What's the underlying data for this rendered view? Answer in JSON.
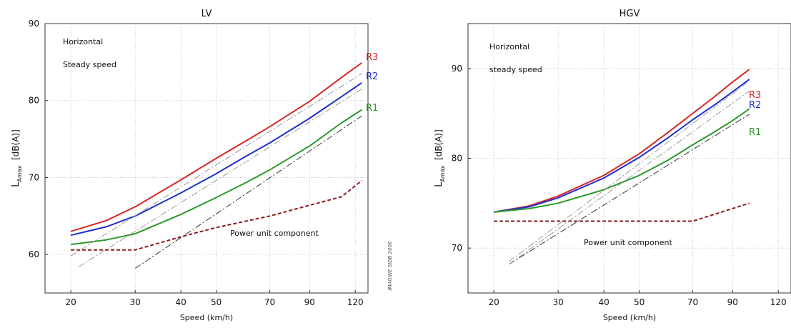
{
  "chart_data": [
    {
      "type": "line",
      "title": "LV",
      "xlabel": "Speed (km/h)",
      "ylabel_main": "L",
      "ylabel_sub": "Amax",
      "ylabel_unit": "[dB(A)]",
      "x_scale": "log",
      "xlim": [
        17,
        130
      ],
      "ylim": [
        55,
        90
      ],
      "xticks": [
        20,
        30,
        40,
        50,
        70,
        90,
        120
      ],
      "yticks": [
        60,
        70,
        80,
        90
      ],
      "grid": true,
      "annotations": [
        "Horizontal",
        "Steady speed"
      ],
      "component_label": "Power unit component",
      "watermark": "IMAGINE SIDB 2006",
      "series": [
        {
          "name": "R3",
          "color": "#d62728",
          "style": "solid",
          "x": [
            20,
            25,
            30,
            40,
            50,
            60,
            70,
            90,
            110,
            125
          ],
          "y": [
            63.0,
            64.4,
            66.2,
            69.7,
            72.5,
            74.7,
            76.6,
            79.9,
            83.0,
            84.9
          ]
        },
        {
          "name": "R2",
          "color": "#1f2fd0",
          "style": "solid",
          "x": [
            20,
            25,
            30,
            40,
            50,
            60,
            70,
            90,
            110,
            125
          ],
          "y": [
            62.5,
            63.6,
            65.0,
            68.0,
            70.5,
            72.7,
            74.5,
            77.7,
            80.5,
            82.3
          ]
        },
        {
          "name": "R1",
          "color": "#2a9a2a",
          "style": "solid",
          "x": [
            20,
            25,
            30,
            40,
            50,
            60,
            70,
            90,
            110,
            125
          ],
          "y": [
            61.3,
            61.9,
            62.7,
            65.2,
            67.4,
            69.3,
            71.0,
            74.1,
            77.1,
            78.8
          ]
        },
        {
          "name": "",
          "color": "#8b1a1a",
          "style": "dashed",
          "x": [
            20,
            30,
            40,
            50,
            70,
            90,
            110,
            125
          ],
          "y": [
            60.6,
            60.6,
            62.3,
            63.5,
            65.0,
            66.4,
            67.5,
            69.6
          ]
        },
        {
          "name": "",
          "color": "#333333",
          "style": "dashdot",
          "x": [
            30,
            125
          ],
          "y": [
            58.2,
            78.0
          ]
        },
        {
          "name": "",
          "color": "#999999",
          "style": "dashdot",
          "x": [
            21,
            125
          ],
          "y": [
            58.4,
            81.5
          ]
        },
        {
          "name": "",
          "color": "#999999",
          "style": "dashdot",
          "x": [
            20,
            125
          ],
          "y": [
            59.8,
            83.5
          ]
        }
      ]
    },
    {
      "type": "line",
      "title": "HGV",
      "xlabel": "Speed (km/h)",
      "ylabel_main": "L",
      "ylabel_sub": "Amax",
      "ylabel_unit": "[dB(A)]",
      "x_scale": "log",
      "xlim": [
        17,
        130
      ],
      "ylim": [
        65,
        95
      ],
      "xticks": [
        20,
        30,
        40,
        50,
        70,
        90,
        120
      ],
      "yticks": [
        70,
        80,
        90
      ],
      "grid": true,
      "annotations": [
        "Horizontal",
        "steady speed"
      ],
      "component_label": "Power unit component",
      "series": [
        {
          "name": "R3",
          "color": "#d62728",
          "style": "solid",
          "x": [
            20,
            25,
            30,
            40,
            50,
            60,
            70,
            80,
            90,
            100
          ],
          "y": [
            74.0,
            74.7,
            75.8,
            78.1,
            80.5,
            82.9,
            85.0,
            86.8,
            88.5,
            89.9
          ]
        },
        {
          "name": "R2",
          "color": "#1f2fd0",
          "style": "solid",
          "x": [
            20,
            25,
            30,
            40,
            50,
            60,
            70,
            80,
            90,
            100
          ],
          "y": [
            74.0,
            74.6,
            75.6,
            77.8,
            80.1,
            82.3,
            84.3,
            85.9,
            87.4,
            88.8
          ]
        },
        {
          "name": "R1",
          "color": "#2a9a2a",
          "style": "solid",
          "x": [
            20,
            25,
            30,
            40,
            50,
            60,
            70,
            80,
            90,
            100
          ],
          "y": [
            74.0,
            74.4,
            75.0,
            76.5,
            78.1,
            79.8,
            81.5,
            82.9,
            84.2,
            85.5
          ]
        },
        {
          "name": "",
          "color": "#8b1a1a",
          "style": "dashed",
          "x": [
            20,
            70,
            100
          ],
          "y": [
            73.0,
            73.0,
            75.0
          ]
        },
        {
          "name": "",
          "color": "#333333",
          "style": "dashdot",
          "x": [
            22,
            100
          ],
          "y": [
            68.2,
            84.9
          ]
        },
        {
          "name": "",
          "color": "#999999",
          "style": "dashdot",
          "x": [
            22,
            100
          ],
          "y": [
            68.2,
            87.5
          ]
        },
        {
          "name": "",
          "color": "#999999",
          "style": "dashdot",
          "x": [
            22,
            100
          ],
          "y": [
            68.5,
            88.6
          ]
        }
      ]
    }
  ]
}
